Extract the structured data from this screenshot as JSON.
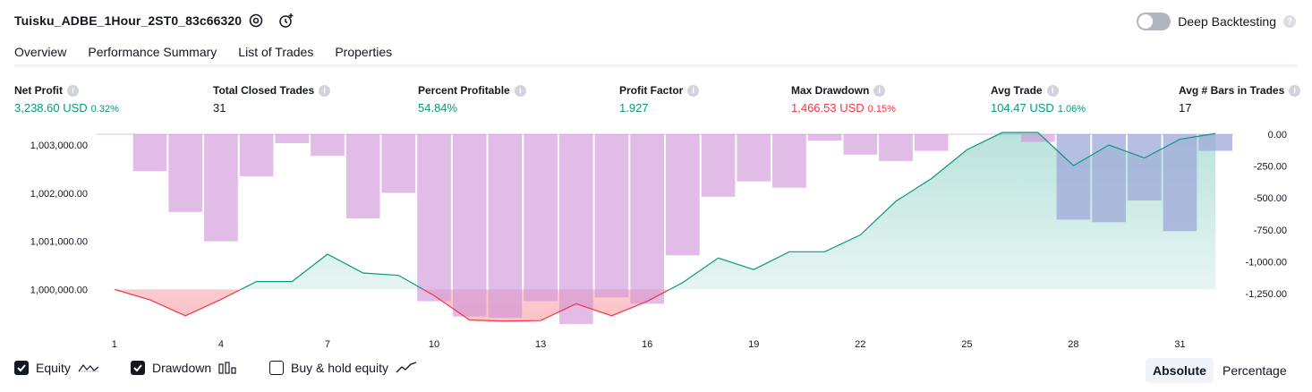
{
  "header": {
    "strategy_name": "Tuisku_ADBE_1Hour_2ST0_83c66320",
    "deep_backtesting_label": "Deep Backtesting",
    "deep_backtesting_on": false
  },
  "tabs": [
    {
      "label": "Overview",
      "active": true
    },
    {
      "label": "Performance Summary",
      "active": false
    },
    {
      "label": "List of Trades",
      "active": false
    },
    {
      "label": "Properties",
      "active": false
    }
  ],
  "metrics": [
    {
      "label": "Net Profit",
      "value": "3,238.60 USD",
      "pct": "0.32%",
      "color": "g"
    },
    {
      "label": "Total Closed Trades",
      "value": "31",
      "pct": "",
      "color": "n"
    },
    {
      "label": "Percent Profitable",
      "value": "54.84%",
      "pct": "",
      "color": "g"
    },
    {
      "label": "Profit Factor",
      "value": "1.927",
      "pct": "",
      "color": "g"
    },
    {
      "label": "Max Drawdown",
      "value": "1,466.53 USD",
      "pct": "0.15%",
      "color": "r"
    },
    {
      "label": "Avg Trade",
      "value": "104.47 USD",
      "pct": "1.06%",
      "color": "g"
    },
    {
      "label": "Avg # Bars in Trades",
      "value": "17",
      "pct": "",
      "color": "n"
    }
  ],
  "legend": {
    "equity_label": "Equity",
    "equity_on": true,
    "drawdown_label": "Drawdown",
    "drawdown_on": true,
    "buyhold_label": "Buy & hold equity",
    "buyhold_on": false
  },
  "modes": {
    "absolute": "Absolute",
    "percentage": "Percentage",
    "active": "absolute"
  },
  "colors": {
    "equity": "#089981",
    "equity_loss": "#f23645",
    "drawdown_bar": "#ce93d8",
    "overlap_bar": "#9fa8da"
  },
  "chart_data": {
    "type": "line",
    "x_ticks": [
      "1",
      "4",
      "7",
      "10",
      "13",
      "16",
      "19",
      "22",
      "25",
      "28",
      "31"
    ],
    "y_left_ticks": [
      "1,003,000.00",
      "1,002,000.00",
      "1,001,000.00",
      "1,000,000.00"
    ],
    "y_left_values": [
      1003000,
      1002000,
      1001000,
      1000000
    ],
    "y_right_ticks": [
      "0.00",
      "-250.00",
      "-500.00",
      "-750.00",
      "-1,000.00",
      "-1,250.00"
    ],
    "y_right_values": [
      0,
      -250,
      -500,
      -750,
      -1000,
      -1250
    ],
    "trades": [
      1,
      2,
      3,
      4,
      5,
      6,
      7,
      8,
      9,
      10,
      11,
      12,
      13,
      14,
      15,
      16,
      17,
      18,
      19,
      20,
      21,
      22,
      23,
      24,
      25,
      26,
      27,
      28,
      29,
      30,
      31,
      32
    ],
    "equity": [
      1000000,
      999780,
      999450,
      999790,
      1000160,
      1000160,
      1000730,
      1000340,
      1000290,
      999870,
      999360,
      999340,
      999350,
      999700,
      999450,
      999750,
      1000140,
      1000650,
      1000410,
      1000780,
      1000780,
      1001130,
      1001830,
      1002300,
      1002900,
      1003260,
      1003260,
      1002570,
      1003000,
      1002730,
      1003120,
      1003240
    ],
    "drawdown": [
      0,
      -290,
      -610,
      -840,
      -330,
      -70,
      -170,
      -660,
      -460,
      -1310,
      -1430,
      -1440,
      -1310,
      -1490,
      -1280,
      -1330,
      -950,
      -490,
      -370,
      -420,
      -50,
      -160,
      -210,
      -130,
      0,
      0,
      -60,
      -670,
      -690,
      -520,
      -760,
      -130
    ]
  }
}
